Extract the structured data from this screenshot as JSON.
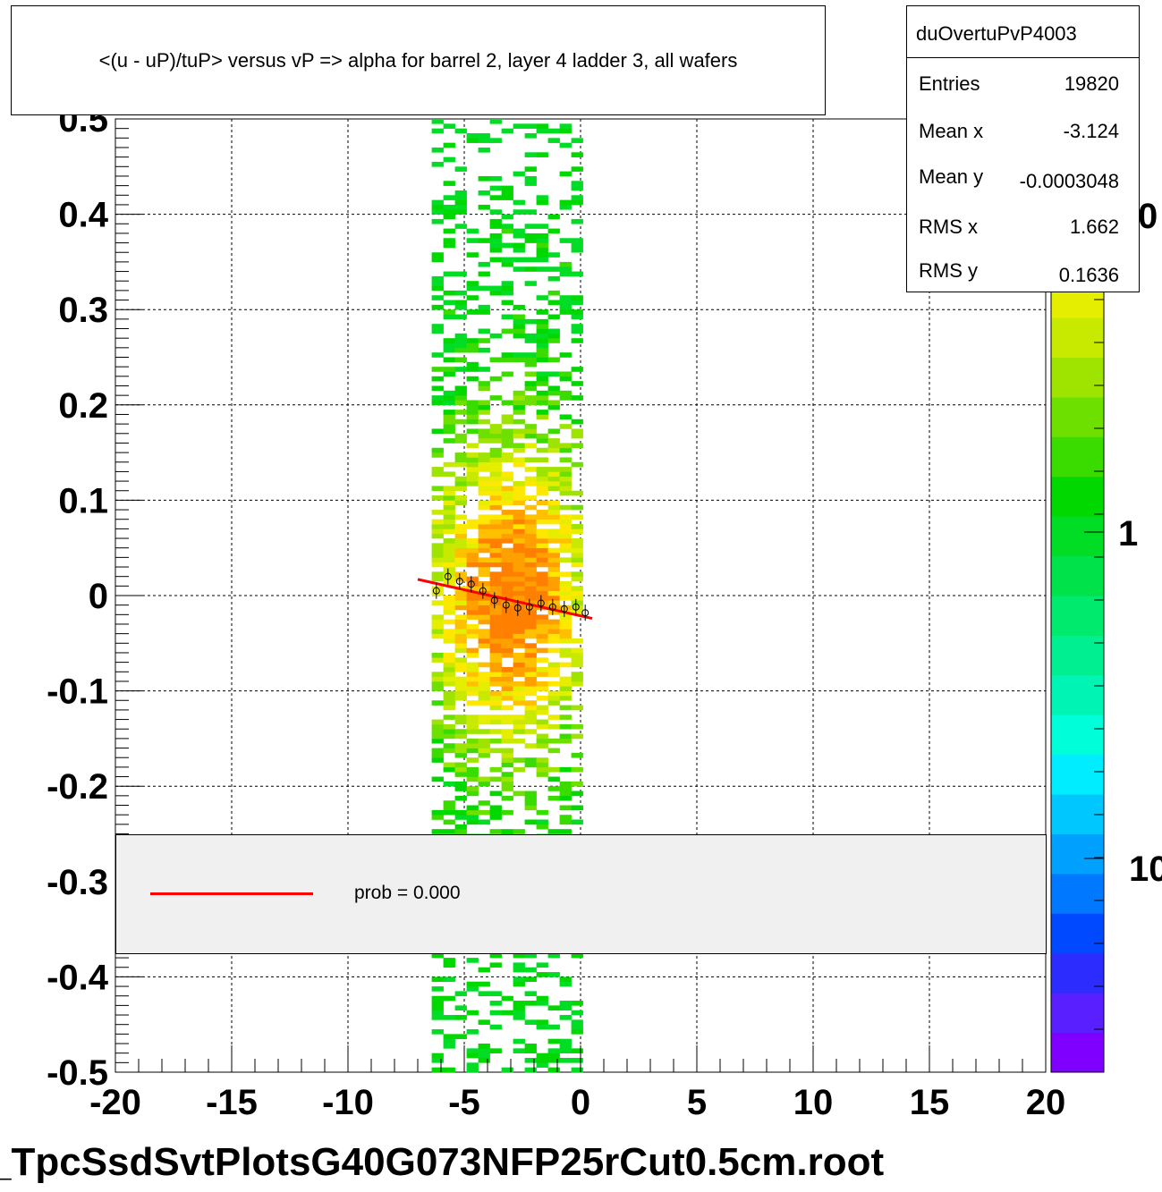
{
  "title": "<(u - uP)/tuP> versus   vP => alpha for barrel 2, layer 4 ladder 3, all wafers",
  "stats": {
    "name": "duOvertuPvP4003",
    "rows": [
      {
        "key": "Entries",
        "value": "19820"
      },
      {
        "key": "Mean x",
        "value": "-3.124"
      },
      {
        "key": "Mean y",
        "value": "-0.0003048"
      },
      {
        "key": "RMS x",
        "value": "1.662"
      },
      {
        "key": "RMS y",
        "value": "0.1636"
      }
    ]
  },
  "legend": {
    "label": "prob = 0.000",
    "line_color": "#ff0000"
  },
  "footer": "_TpcSsdSvtPlotsG40G073NFP25rCut0.5cm.root",
  "colors": {
    "palette": [
      "#7f00ff",
      "#5a1fff",
      "#2c2cff",
      "#0049ff",
      "#0078ff",
      "#00a0ff",
      "#00c8ff",
      "#00ecff",
      "#00ffd9",
      "#00f5b5",
      "#00ef90",
      "#00ea6e",
      "#00e24a",
      "#00dd24",
      "#00d800",
      "#3adc00",
      "#6ee000",
      "#9ee400",
      "#c8ea00",
      "#e6ee00",
      "#ffe800",
      "#ffc000",
      "#ffa000",
      "#ff8000"
    ],
    "fit_line": "#ff0000",
    "profile_points": "#000000"
  },
  "chart_data": {
    "type": "heatmap",
    "title": "<(u - uP)/tuP> versus   vP => alpha for barrel 2, layer 4 ladder 3, all wafers",
    "xlabel": "",
    "ylabel": "",
    "xlim": [
      -20,
      20
    ],
    "ylim": [
      -0.5,
      0.5
    ],
    "x_ticks": [
      -20,
      -15,
      -10,
      -5,
      0,
      5,
      10,
      15,
      20
    ],
    "x_tick_labels": [
      "-20",
      "-15",
      "-10",
      "-5",
      "0",
      "5",
      "10",
      "15",
      "20"
    ],
    "y_ticks": [
      -0.5,
      -0.4,
      -0.3,
      -0.2,
      -0.1,
      0,
      0.1,
      0.2,
      0.3,
      0.4,
      0.5
    ],
    "y_tick_labels": [
      "-0.5",
      "-0.4",
      "-0.3",
      "-0.2",
      "-0.1",
      "0",
      "0.1",
      "0.2",
      "0.3",
      "0.4",
      "0.5"
    ],
    "grid": true,
    "z_scale": "log",
    "z_tick_labels": [
      "10",
      "1",
      "0"
    ],
    "populated_x_range": [
      -6.4,
      0.0
    ],
    "density_peak": {
      "x": -3.0,
      "y": 0.0
    },
    "fit_line": {
      "x": [
        -7.0,
        0.5
      ],
      "y": [
        0.017,
        -0.024
      ]
    },
    "profile": {
      "x": [
        -6.2,
        -5.7,
        -5.2,
        -4.7,
        -4.2,
        -3.7,
        -3.2,
        -2.7,
        -2.2,
        -1.7,
        -1.2,
        -0.7,
        -0.2,
        0.2
      ],
      "y": [
        0.005,
        0.02,
        0.015,
        0.012,
        0.005,
        -0.005,
        -0.01,
        -0.013,
        -0.012,
        -0.008,
        -0.012,
        -0.014,
        -0.012,
        -0.018
      ]
    },
    "legend": {
      "entries": [
        "prob = 0.000"
      ],
      "placement": "lower-middle"
    },
    "stats_box_placement": "top-right"
  }
}
